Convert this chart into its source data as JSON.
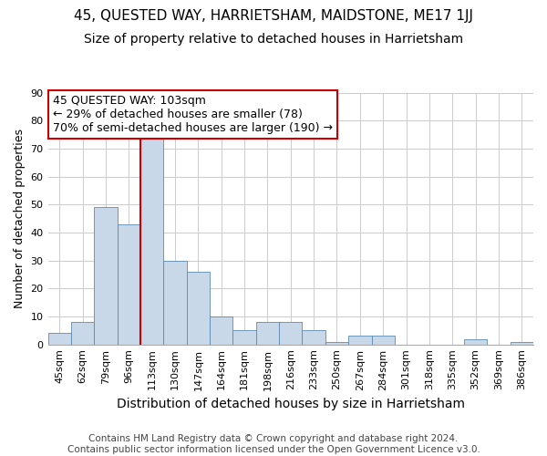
{
  "title": "45, QUESTED WAY, HARRIETSHAM, MAIDSTONE, ME17 1JJ",
  "subtitle": "Size of property relative to detached houses in Harrietsham",
  "xlabel": "Distribution of detached houses by size in Harrietsham",
  "ylabel": "Number of detached properties",
  "bar_labels": [
    "45sqm",
    "62sqm",
    "79sqm",
    "96sqm",
    "113sqm",
    "130sqm",
    "147sqm",
    "164sqm",
    "181sqm",
    "198sqm",
    "216sqm",
    "233sqm",
    "250sqm",
    "267sqm",
    "284sqm",
    "301sqm",
    "318sqm",
    "335sqm",
    "352sqm",
    "369sqm",
    "386sqm"
  ],
  "bar_values": [
    4,
    8,
    49,
    43,
    74,
    30,
    26,
    10,
    5,
    8,
    8,
    5,
    1,
    3,
    3,
    0,
    0,
    0,
    2,
    0,
    1
  ],
  "bar_color": "#c8d8e8",
  "bar_edge_color": "#5a8ab0",
  "vline_color": "#cc0000",
  "vline_x_index": 4,
  "ylim_max": 90,
  "annotation_title": "45 QUESTED WAY: 103sqm",
  "annotation_line1": "← 29% of detached houses are smaller (78)",
  "annotation_line2": "70% of semi-detached houses are larger (190) →",
  "annotation_box_color": "#ffffff",
  "annotation_box_edge": "#cc0000",
  "footer_line1": "Contains HM Land Registry data © Crown copyright and database right 2024.",
  "footer_line2": "Contains public sector information licensed under the Open Government Licence v3.0.",
  "title_fontsize": 11,
  "subtitle_fontsize": 10,
  "xlabel_fontsize": 10,
  "ylabel_fontsize": 9,
  "tick_fontsize": 8,
  "annotation_fontsize": 9,
  "footer_fontsize": 7.5,
  "grid_color": "#cccccc"
}
